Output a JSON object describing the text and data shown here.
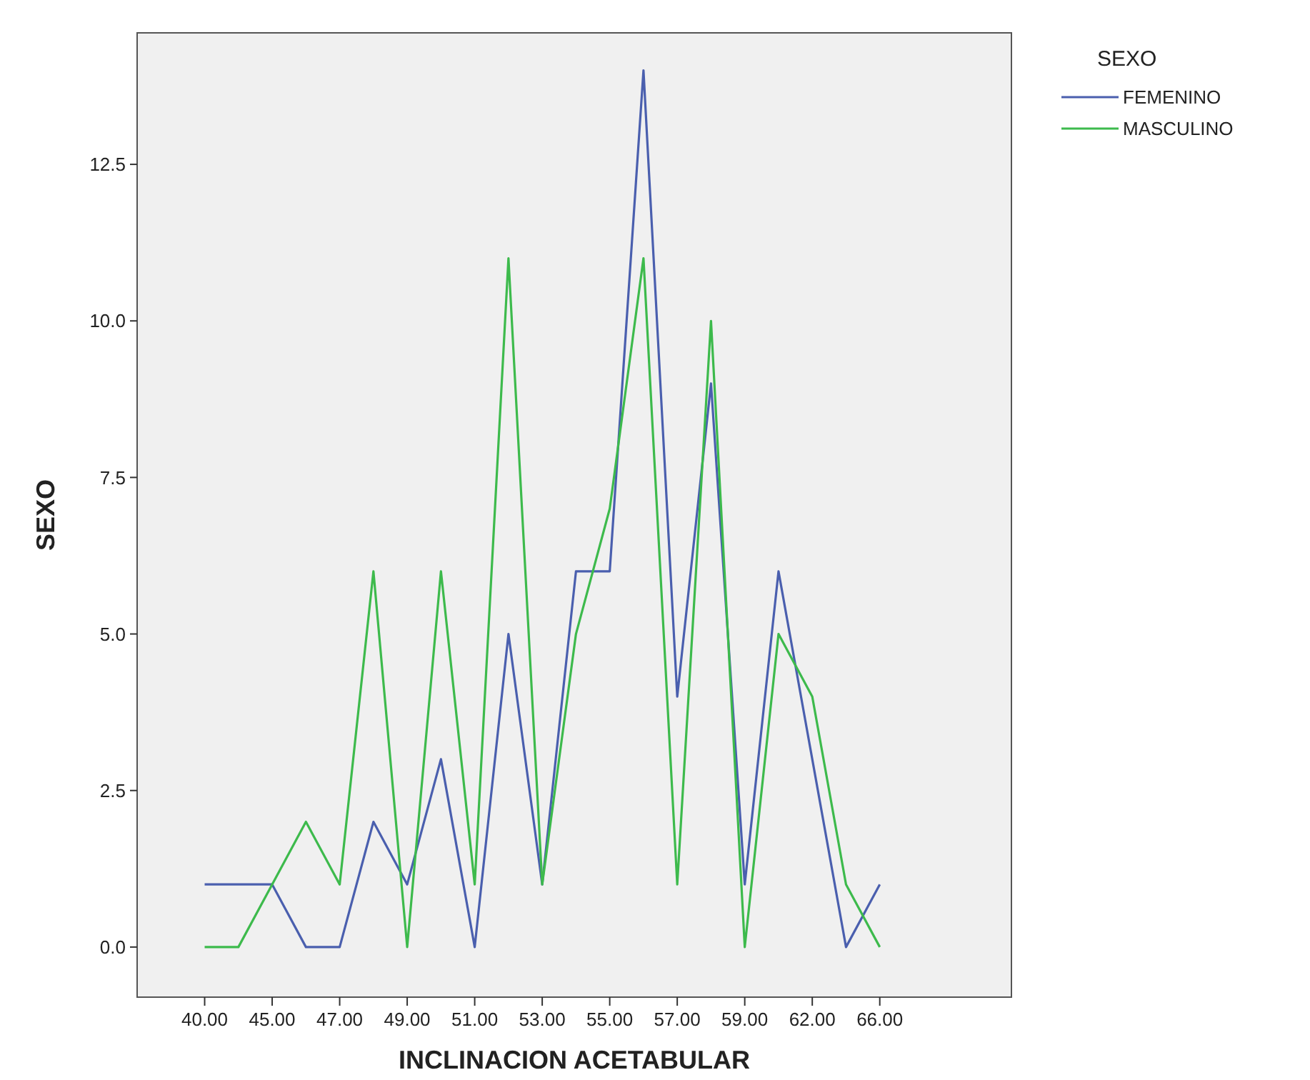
{
  "chart_data": {
    "type": "line",
    "xlabel": "INCLINACION ACETABULAR",
    "ylabel": "SEXO",
    "legend_title": "SEXO",
    "categories": [
      "40.00",
      null,
      "45.00",
      null,
      "47.00",
      null,
      "49.00",
      null,
      "51.00",
      null,
      "53.00",
      null,
      "55.00",
      null,
      "57.00",
      null,
      "59.00",
      null,
      "62.00",
      null,
      "66.00"
    ],
    "series": [
      {
        "name": "FEMENINO",
        "color": "#4a5fae",
        "values": [
          1,
          1,
          1,
          0,
          0,
          2,
          1,
          3,
          0,
          5,
          1,
          6,
          6,
          14,
          4,
          9,
          1,
          6,
          3,
          0,
          1
        ]
      },
      {
        "name": "MASCULINO",
        "color": "#3dba4c",
        "values": [
          0,
          0,
          1,
          2,
          1,
          6,
          0,
          6,
          1,
          11,
          1,
          5,
          7,
          11,
          1,
          10,
          0,
          5,
          4,
          1,
          0
        ]
      }
    ],
    "ylim": [
      -0.8,
      14.6
    ],
    "yticks": [
      {
        "value": 0,
        "label": "0.0"
      },
      {
        "value": 2.5,
        "label": "2.5"
      },
      {
        "value": 5,
        "label": "5.0"
      },
      {
        "value": 7.5,
        "label": "7.5"
      },
      {
        "value": 10,
        "label": "10.0"
      },
      {
        "value": 12.5,
        "label": "12.5"
      }
    ],
    "grid": false,
    "legend": "right",
    "marker": "none",
    "line_style": "solid"
  }
}
